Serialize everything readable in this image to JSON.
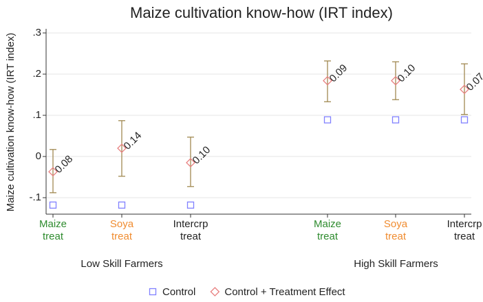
{
  "chart_data": {
    "type": "dot-ci",
    "title": "Maize cultivation know-how (IRT index)",
    "y_label": "Maize cultivation know-how (IRT index)",
    "categories": [
      "Maize treat",
      "Soya treat",
      "Intercrp treat",
      "Maize treat",
      "Soya treat",
      "Intercrp treat"
    ],
    "category_colors": [
      "#2e8b2e",
      "#f08c30",
      "#222222",
      "#2e8b2e",
      "#f08c30",
      "#222222"
    ],
    "groups": [
      "Low Skill Farmers",
      "High Skill Farmers"
    ],
    "series": [
      {
        "name": "Control",
        "color": "#8080ff",
        "marker": "square",
        "values": [
          -0.118,
          -0.118,
          -0.118,
          0.089,
          0.089,
          0.089
        ]
      },
      {
        "name": "Control + Treatment Effect",
        "color": "#e88080",
        "marker": "diamond",
        "values": [
          -0.037,
          0.02,
          -0.015,
          0.184,
          0.184,
          0.163
        ],
        "lower": [
          -0.088,
          -0.048,
          -0.073,
          0.133,
          0.138,
          0.102
        ],
        "upper": [
          0.017,
          0.087,
          0.047,
          0.232,
          0.23,
          0.225
        ],
        "ci_color": "#a08850",
        "effect_labels": [
          "0.08",
          "0.14",
          "0.10",
          "0.09",
          "0.10",
          "0.07"
        ]
      }
    ],
    "ylim": [
      -0.14,
      0.31
    ],
    "yticks": [
      {
        "value": -0.1,
        "label": "-.1"
      },
      0,
      {
        "value": 0.1,
        "label": ".1"
      },
      {
        "value": 0.2,
        "label": ".2"
      },
      {
        "value": 0.3,
        "label": ".3"
      }
    ],
    "grid": true
  }
}
